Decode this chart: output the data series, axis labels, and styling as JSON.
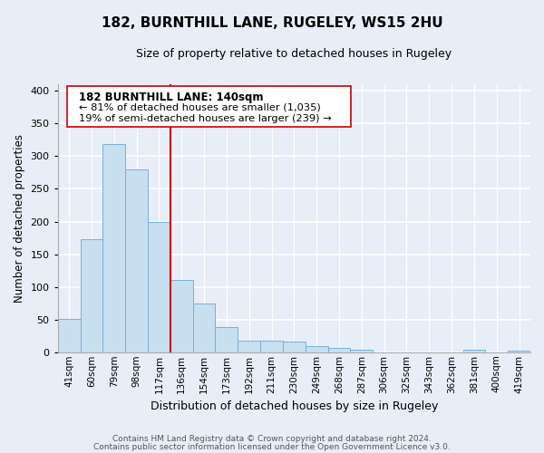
{
  "title": "182, BURNTHILL LANE, RUGELEY, WS15 2HU",
  "subtitle": "Size of property relative to detached houses in Rugeley",
  "xlabel": "Distribution of detached houses by size in Rugeley",
  "ylabel": "Number of detached properties",
  "bar_labels": [
    "41sqm",
    "60sqm",
    "79sqm",
    "98sqm",
    "117sqm",
    "136sqm",
    "154sqm",
    "173sqm",
    "192sqm",
    "211sqm",
    "230sqm",
    "249sqm",
    "268sqm",
    "287sqm",
    "306sqm",
    "325sqm",
    "343sqm",
    "362sqm",
    "381sqm",
    "400sqm",
    "419sqm"
  ],
  "bar_values": [
    51,
    173,
    318,
    280,
    200,
    110,
    75,
    39,
    18,
    18,
    17,
    10,
    6,
    4,
    0,
    0,
    0,
    0,
    4,
    0,
    2
  ],
  "bar_color": "#c8dff0",
  "bar_edge_color": "#7ab0d0",
  "vline_color": "#cc0000",
  "annotation_title": "182 BURNTHILL LANE: 140sqm",
  "annotation_line1": "← 81% of detached houses are smaller (1,035)",
  "annotation_line2": "19% of semi-detached houses are larger (239) →",
  "ylim": [
    0,
    410
  ],
  "yticks": [
    0,
    50,
    100,
    150,
    200,
    250,
    300,
    350,
    400
  ],
  "footer_line1": "Contains HM Land Registry data © Crown copyright and database right 2024.",
  "footer_line2": "Contains public sector information licensed under the Open Government Licence v3.0.",
  "bg_color": "#e8eef8",
  "plot_bg_color": "#e8eef8"
}
